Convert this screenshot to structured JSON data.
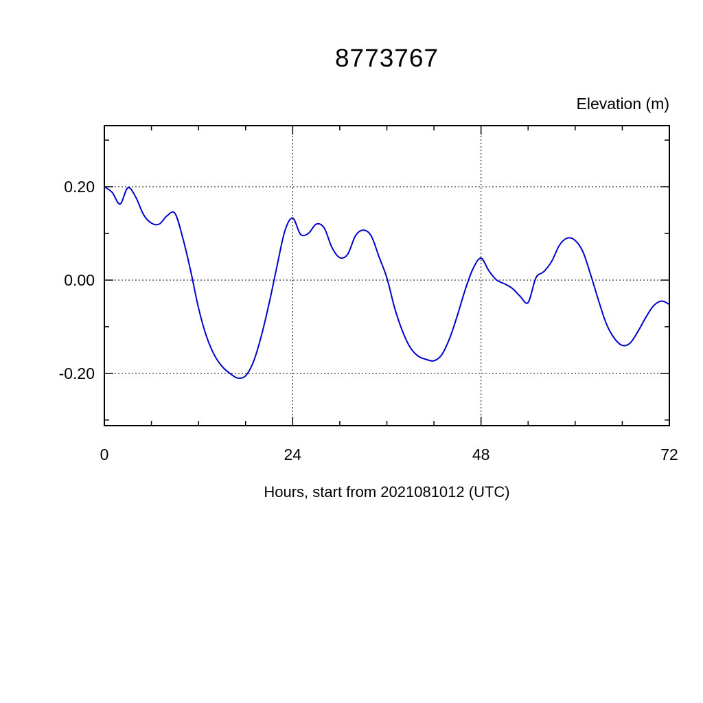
{
  "chart_data": {
    "type": "line",
    "title": "8773767",
    "ylabel": "Elevation (m)",
    "xlabel": "Hours, start from 2021081012 (UTC)",
    "line_color": "#0000cd",
    "xlim": [
      0,
      72
    ],
    "ylim": [
      -0.312,
      0.331
    ],
    "xticks": [
      0,
      24,
      48,
      72
    ],
    "xtick_labels": [
      "0",
      "24",
      "48",
      "72"
    ],
    "xtick_minor_interval": 6,
    "yticks": [
      0.2,
      0.0,
      -0.2
    ],
    "ytick_labels": [
      "0.20",
      "0.00",
      "-0.20"
    ],
    "ytick_minor_interval": 0.1,
    "grid_x": [
      24,
      48
    ],
    "grid_y": [
      0.2,
      0.0,
      -0.2
    ],
    "grid_style": "dotted",
    "legend": "none",
    "hours": [
      0,
      1,
      2,
      3,
      4,
      5,
      6,
      7,
      8,
      9,
      10,
      11,
      12,
      13,
      14,
      15,
      16,
      17,
      18,
      19,
      20,
      21,
      22,
      23,
      24,
      25,
      26,
      27,
      28,
      29,
      30,
      31,
      32,
      33,
      34,
      35,
      36,
      37,
      38,
      39,
      40,
      41,
      42,
      43,
      44,
      45,
      46,
      47,
      48,
      49,
      50,
      51,
      52,
      53,
      54,
      55,
      56,
      57,
      58,
      59,
      60,
      61,
      62,
      63,
      64,
      65,
      66,
      67,
      68,
      69,
      70,
      71,
      72
    ],
    "values": [
      0.2,
      0.188,
      0.163,
      0.198,
      0.178,
      0.14,
      0.122,
      0.12,
      0.138,
      0.143,
      0.09,
      0.02,
      -0.06,
      -0.12,
      -0.16,
      -0.185,
      -0.2,
      -0.21,
      -0.205,
      -0.175,
      -0.12,
      -0.05,
      0.03,
      0.105,
      0.133,
      0.098,
      0.1,
      0.12,
      0.112,
      0.07,
      0.048,
      0.055,
      0.095,
      0.107,
      0.095,
      0.05,
      0.005,
      -0.06,
      -0.11,
      -0.145,
      -0.163,
      -0.17,
      -0.173,
      -0.16,
      -0.125,
      -0.075,
      -0.02,
      0.025,
      0.047,
      0.02,
      0.0,
      -0.008,
      -0.018,
      -0.035,
      -0.048,
      0.005,
      0.018,
      0.04,
      0.075,
      0.09,
      0.085,
      0.06,
      0.01,
      -0.045,
      -0.095,
      -0.125,
      -0.14,
      -0.135,
      -0.11,
      -0.08,
      -0.055,
      -0.045,
      -0.052
    ]
  }
}
